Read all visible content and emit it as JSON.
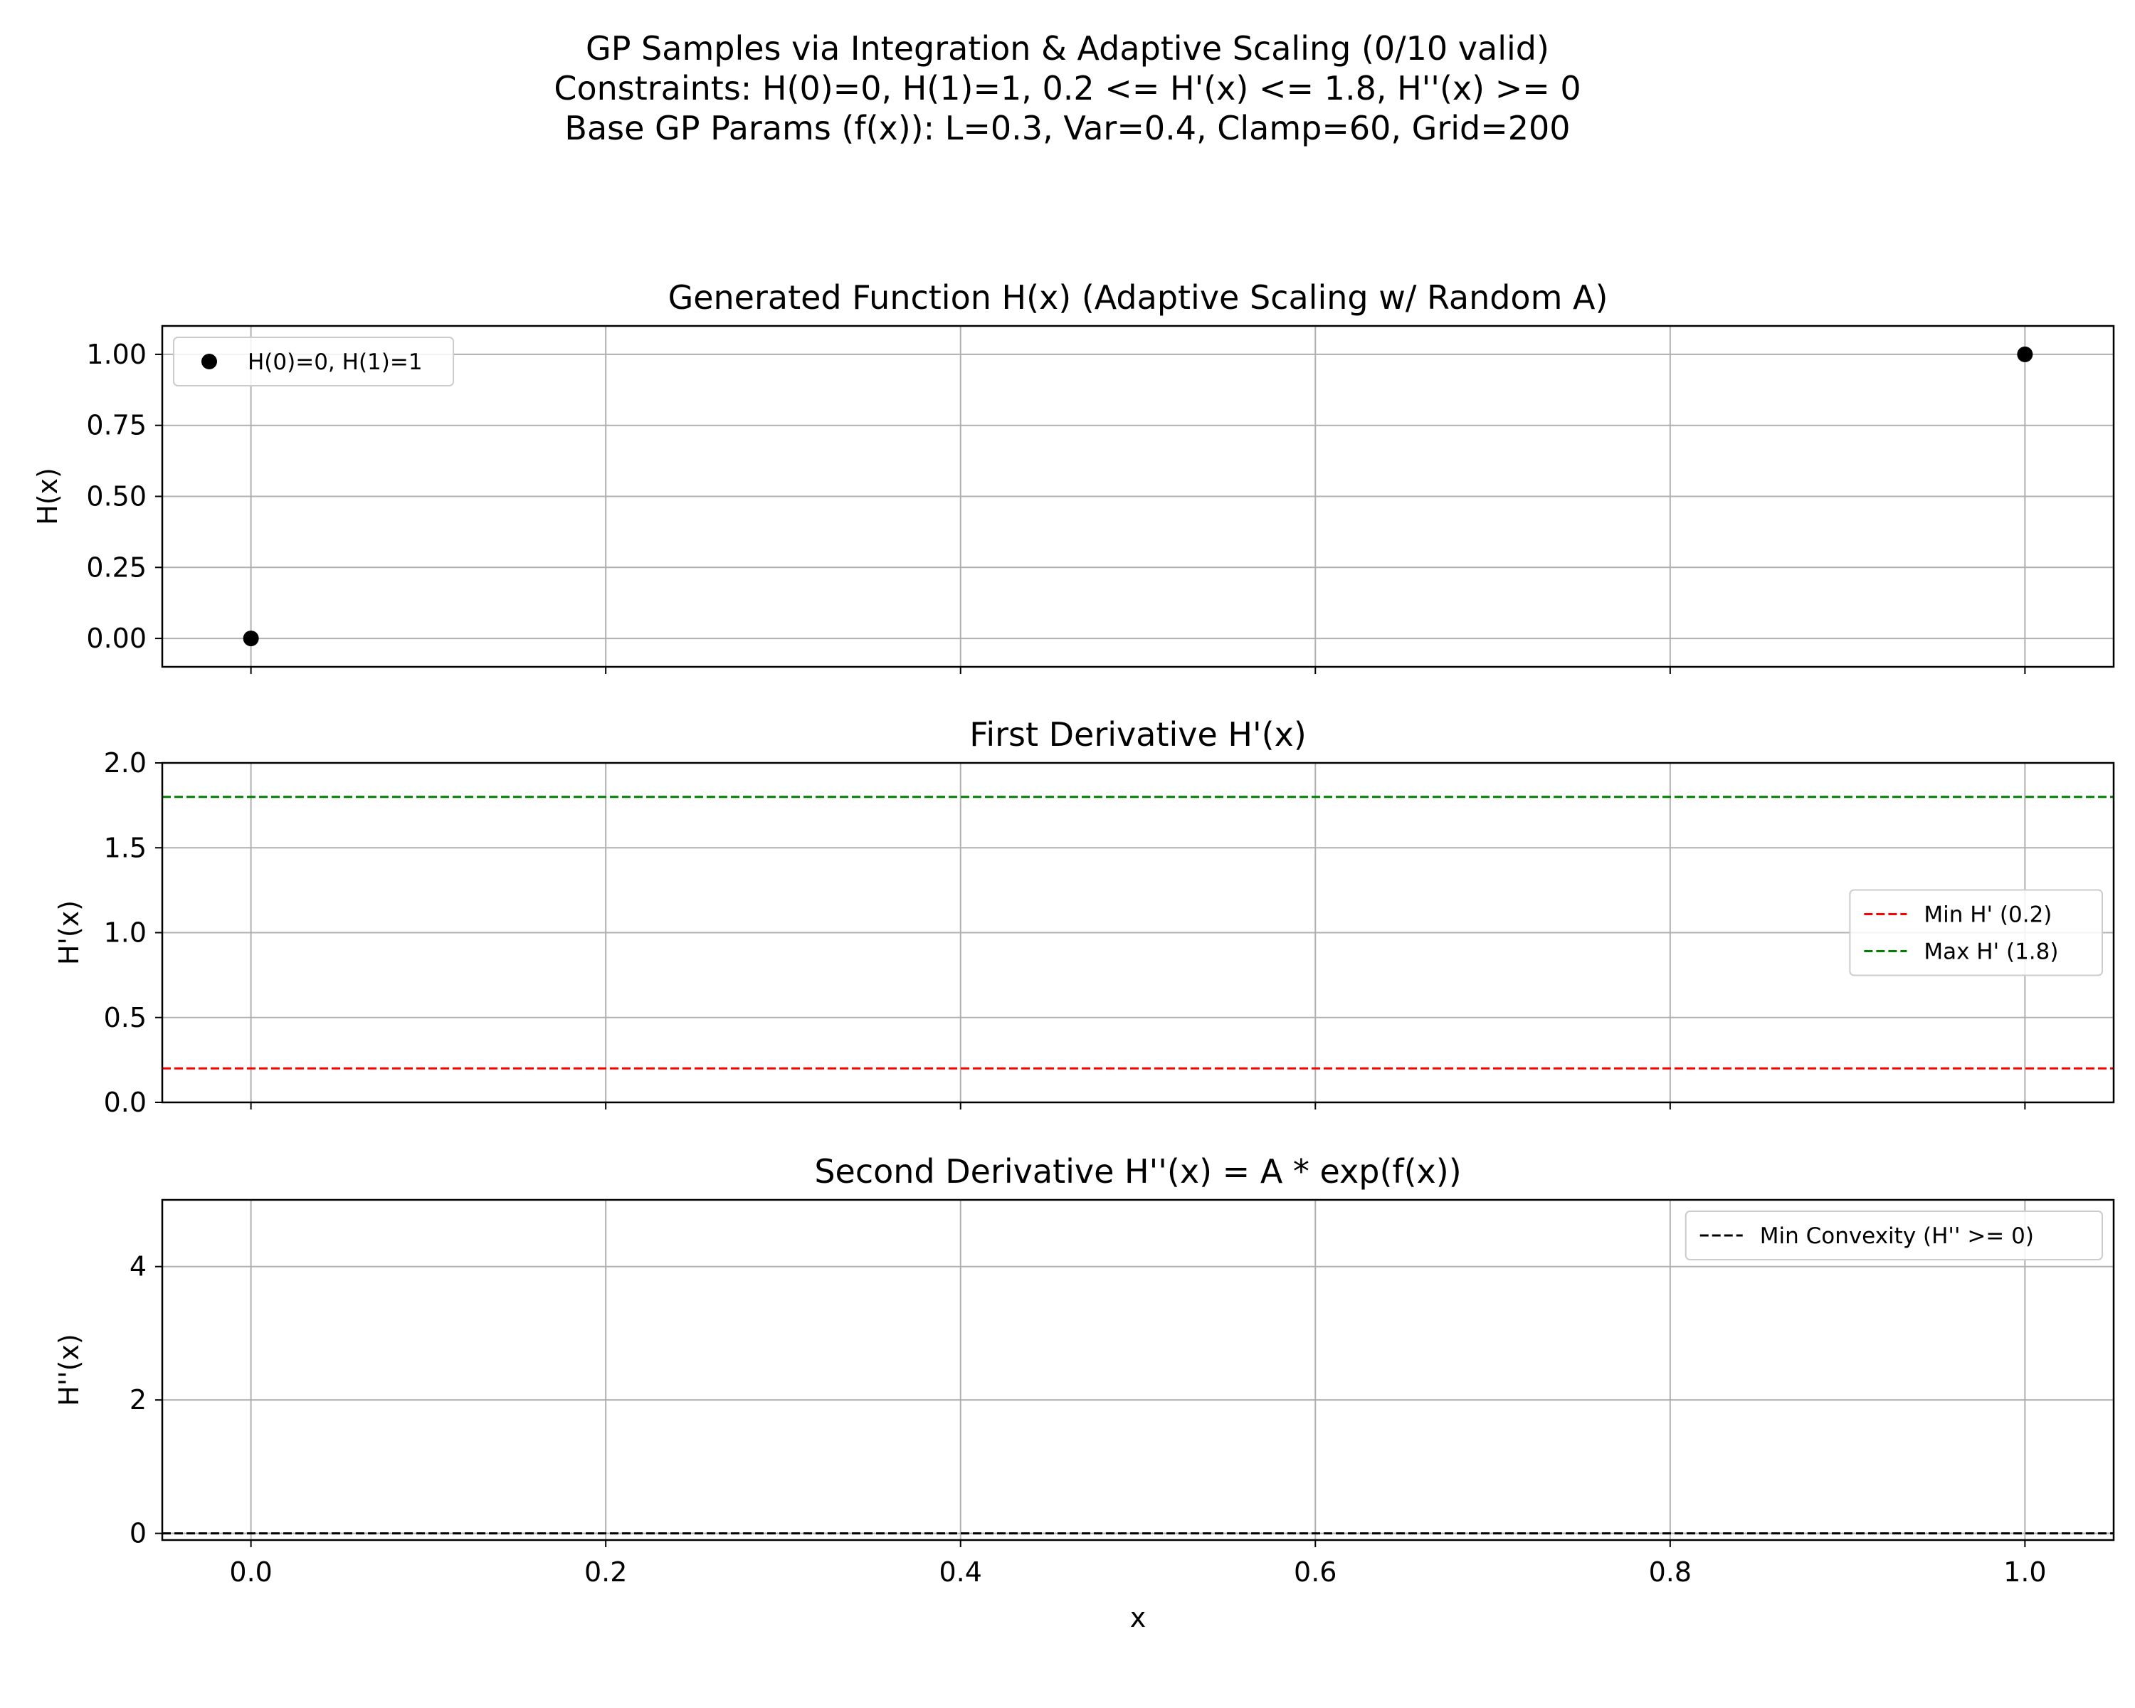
{
  "suptitle": {
    "line1": "GP Samples via Integration & Adaptive Scaling (0/10 valid)",
    "line2": "Constraints: H(0)=0, H(1)=1, 0.2 <= H'(x) <= 1.8, H''(x) >= 0",
    "line3": "Base GP Params (f(x)): L=0.3, Var=0.4, Clamp=60, Grid=200"
  },
  "chart_data": [
    {
      "type": "scatter",
      "title": "Generated Function H(x) (Adaptive Scaling w/ Random A)",
      "xlabel": "",
      "ylabel": "H(x)",
      "xlim": [
        -0.05,
        1.05
      ],
      "ylim": [
        -0.1,
        1.1
      ],
      "yticks": [
        0.0,
        0.25,
        0.5,
        0.75,
        1.0
      ],
      "ytick_labels": [
        "0.00",
        "0.25",
        "0.50",
        "0.75",
        "1.00"
      ],
      "grid": true,
      "legend_position": "upper-left",
      "series": [
        {
          "name": "H(0)=0, H(1)=1",
          "x": [
            0,
            1
          ],
          "y": [
            0,
            1
          ],
          "color": "#000000",
          "style": "marker"
        }
      ]
    },
    {
      "type": "line",
      "title": "First Derivative H'(x)",
      "xlabel": "",
      "ylabel": "H'(x)",
      "xlim": [
        -0.05,
        1.05
      ],
      "ylim": [
        0.0,
        2.0
      ],
      "yticks": [
        0.0,
        0.5,
        1.0,
        1.5,
        2.0
      ],
      "ytick_labels": [
        "0.0",
        "0.5",
        "1.0",
        "1.5",
        "2.0"
      ],
      "grid": true,
      "legend_position": "center-right",
      "series": [
        {
          "name": "Min H' (0.2)",
          "hline": 0.2,
          "color": "#ff0000",
          "style": "dashed"
        },
        {
          "name": "Max H' (1.8)",
          "hline": 1.8,
          "color": "#008000",
          "style": "dashed"
        }
      ]
    },
    {
      "type": "line",
      "title": "Second Derivative H''(x) = A * exp(f(x))",
      "xlabel": "x",
      "ylabel": "H''(x)",
      "xlim": [
        -0.05,
        1.05
      ],
      "ylim": [
        -0.1,
        5.0
      ],
      "yticks": [
        0,
        2,
        4
      ],
      "ytick_labels": [
        "0",
        "2",
        "4"
      ],
      "xticks": [
        0.0,
        0.2,
        0.4,
        0.6,
        0.8,
        1.0
      ],
      "xtick_labels": [
        "0.0",
        "0.2",
        "0.4",
        "0.6",
        "0.8",
        "1.0"
      ],
      "grid": true,
      "legend_position": "upper-right",
      "series": [
        {
          "name": "Min Convexity (H'' >= 0)",
          "hline": 0,
          "color": "#000000",
          "style": "dashed"
        }
      ]
    }
  ]
}
